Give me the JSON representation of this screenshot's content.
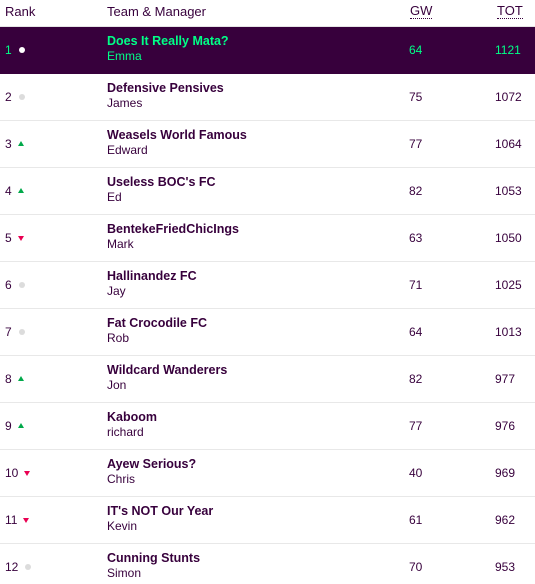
{
  "header": {
    "rank": "Rank",
    "team_manager": "Team & Manager",
    "gw": "GW",
    "tot": "TOT"
  },
  "colors": {
    "highlight_bg": "#37003c",
    "highlight_text": "#00ff87",
    "up": "#01a94a",
    "down": "#e90052",
    "same": "#dcdcdc"
  },
  "rows": [
    {
      "rank": "1",
      "move": "same",
      "team": "Does It Really Mata?",
      "manager": "Emma",
      "gw": "64",
      "tot": "1121",
      "highlight": true
    },
    {
      "rank": "2",
      "move": "same",
      "team": "Defensive Pensives",
      "manager": "James",
      "gw": "75",
      "tot": "1072"
    },
    {
      "rank": "3",
      "move": "up",
      "team": "Weasels World Famous",
      "manager": "Edward",
      "gw": "77",
      "tot": "1064"
    },
    {
      "rank": "4",
      "move": "up",
      "team": "Useless BOC's FC",
      "manager": "Ed",
      "gw": "82",
      "tot": "1053"
    },
    {
      "rank": "5",
      "move": "down",
      "team": "BentekeFriedChicIngs",
      "manager": "Mark",
      "gw": "63",
      "tot": "1050"
    },
    {
      "rank": "6",
      "move": "same",
      "team": "Hallinandez FC",
      "manager": "Jay",
      "gw": "71",
      "tot": "1025"
    },
    {
      "rank": "7",
      "move": "same",
      "team": "Fat Crocodile FC",
      "manager": "Rob",
      "gw": "64",
      "tot": "1013"
    },
    {
      "rank": "8",
      "move": "up",
      "team": "Wildcard Wanderers",
      "manager": "Jon",
      "gw": "82",
      "tot": "977"
    },
    {
      "rank": "9",
      "move": "up",
      "team": "Kaboom",
      "manager": "richard",
      "gw": "77",
      "tot": "976"
    },
    {
      "rank": "10",
      "move": "down",
      "team": "Ayew Serious?",
      "manager": "Chris",
      "gw": "40",
      "tot": "969"
    },
    {
      "rank": "11",
      "move": "down",
      "team": "IT's NOT Our Year",
      "manager": "Kevin",
      "gw": "61",
      "tot": "962"
    },
    {
      "rank": "12",
      "move": "same",
      "team": "Cunning Stunts",
      "manager": "Simon",
      "gw": "70",
      "tot": "953"
    }
  ]
}
